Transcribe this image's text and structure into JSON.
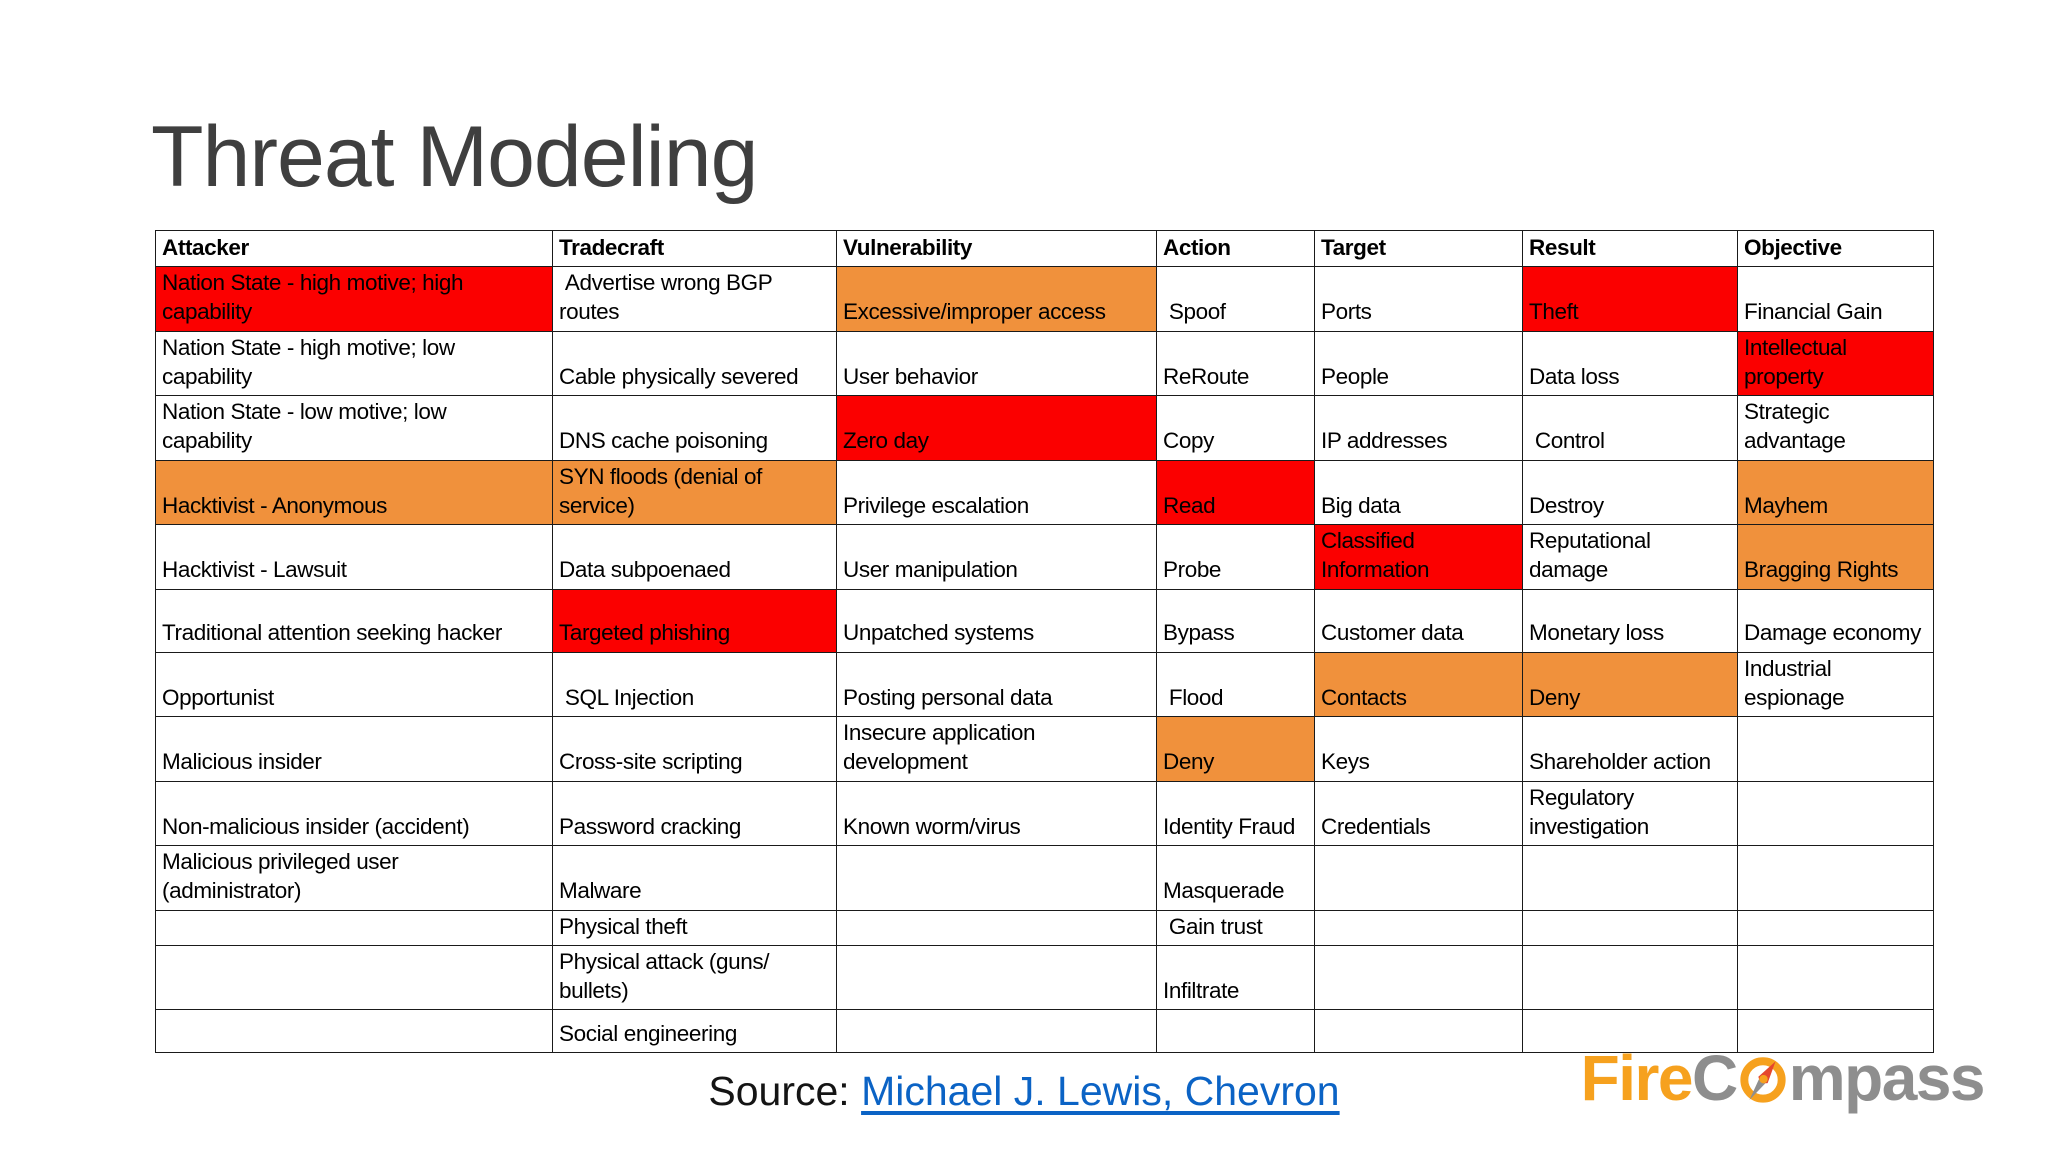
{
  "title": "Threat Modeling",
  "source": {
    "label": "Source: ",
    "link_text": "Michael J. Lewis, Chevron"
  },
  "logo": {
    "fire": "Fire",
    "c": "C",
    "mpass": "mpass"
  },
  "colors": {
    "highlight_red": "#fb0000",
    "highlight_orange": "#f0913c",
    "link_blue": "#0b63c5",
    "title_gray": "#3f3f3f",
    "logo_orange": "#f6a11e",
    "logo_gray": "#8e8e8e",
    "grid": "#1a1a1a"
  },
  "table": {
    "headers": [
      "Attacker",
      "Tradecraft",
      "Vulnerability",
      "Action",
      "Target",
      "Result",
      "Objective"
    ],
    "rows": [
      [
        {
          "t": "Nation State - high motive; high\ncapability",
          "bg": "red"
        },
        {
          "t": " Advertise wrong BGP\nroutes"
        },
        {
          "t": "Excessive/improper access",
          "bg": "orange"
        },
        {
          "t": " Spoof"
        },
        {
          "t": "Ports"
        },
        {
          "t": "Theft",
          "bg": "red"
        },
        {
          "t": "Financial Gain"
        }
      ],
      [
        {
          "t": "Nation State - high motive; low\ncapability"
        },
        {
          "t": "Cable physically severed"
        },
        {
          "t": "User behavior"
        },
        {
          "t": "ReRoute"
        },
        {
          "t": "People"
        },
        {
          "t": "Data loss"
        },
        {
          "t": "Intellectual\nproperty",
          "bg": "red"
        }
      ],
      [
        {
          "t": "Nation State - low motive; low\ncapability"
        },
        {
          "t": "DNS cache poisoning"
        },
        {
          "t": "Zero day",
          "bg": "red"
        },
        {
          "t": "Copy"
        },
        {
          "t": "IP addresses"
        },
        {
          "t": " Control"
        },
        {
          "t": "Strategic\nadvantage"
        }
      ],
      [
        {
          "t": "Hacktivist - Anonymous",
          "bg": "orange"
        },
        {
          "t": "SYN floods (denial of\nservice)",
          "bg": "orange"
        },
        {
          "t": "Privilege escalation"
        },
        {
          "t": "Read",
          "bg": "red"
        },
        {
          "t": "Big data"
        },
        {
          "t": "Destroy"
        },
        {
          "t": "Mayhem",
          "bg": "orange"
        }
      ],
      [
        {
          "t": "Hacktivist - Lawsuit"
        },
        {
          "t": "Data subpoenaed"
        },
        {
          "t": "User manipulation"
        },
        {
          "t": "Probe"
        },
        {
          "t": "Classified\nInformation",
          "bg": "red"
        },
        {
          "t": "Reputational\ndamage"
        },
        {
          "t": "Bragging Rights",
          "bg": "orange"
        }
      ],
      [
        {
          "t": "Traditional attention seeking hacker"
        },
        {
          "t": "Targeted phishing",
          "bg": "red"
        },
        {
          "t": "Unpatched systems"
        },
        {
          "t": "Bypass"
        },
        {
          "t": "Customer data"
        },
        {
          "t": "Monetary loss"
        },
        {
          "t": "Damage economy"
        }
      ],
      [
        {
          "t": "Opportunist"
        },
        {
          "t": " SQL Injection"
        },
        {
          "t": "Posting personal data"
        },
        {
          "t": " Flood"
        },
        {
          "t": "Contacts",
          "bg": "orange"
        },
        {
          "t": "Deny",
          "bg": "orange"
        },
        {
          "t": "Industrial\nespionage"
        }
      ],
      [
        {
          "t": "Malicious insider"
        },
        {
          "t": "Cross-site scripting"
        },
        {
          "t": "Insecure application\ndevelopment"
        },
        {
          "t": "Deny",
          "bg": "orange"
        },
        {
          "t": "Keys"
        },
        {
          "t": "Shareholder action"
        },
        {
          "t": ""
        }
      ],
      [
        {
          "t": "Non-malicious insider (accident)"
        },
        {
          "t": "Password cracking"
        },
        {
          "t": "Known worm/virus"
        },
        {
          "t": "Identity Fraud"
        },
        {
          "t": "Credentials"
        },
        {
          "t": "Regulatory\ninvestigation"
        },
        {
          "t": ""
        }
      ],
      [
        {
          "t": "Malicious privileged user\n(administrator)"
        },
        {
          "t": "Malware"
        },
        {
          "t": ""
        },
        {
          "t": "Masquerade"
        },
        {
          "t": ""
        },
        {
          "t": ""
        },
        {
          "t": ""
        }
      ],
      [
        {
          "t": ""
        },
        {
          "t": "Physical theft"
        },
        {
          "t": ""
        },
        {
          "t": " Gain trust"
        },
        {
          "t": ""
        },
        {
          "t": ""
        },
        {
          "t": ""
        }
      ],
      [
        {
          "t": ""
        },
        {
          "t": "Physical attack (guns/\nbullets)"
        },
        {
          "t": ""
        },
        {
          "t": "Infiltrate"
        },
        {
          "t": ""
        },
        {
          "t": ""
        },
        {
          "t": ""
        }
      ],
      [
        {
          "t": ""
        },
        {
          "t": "Social engineering"
        },
        {
          "t": ""
        },
        {
          "t": ""
        },
        {
          "t": ""
        },
        {
          "t": ""
        },
        {
          "t": ""
        }
      ]
    ]
  }
}
